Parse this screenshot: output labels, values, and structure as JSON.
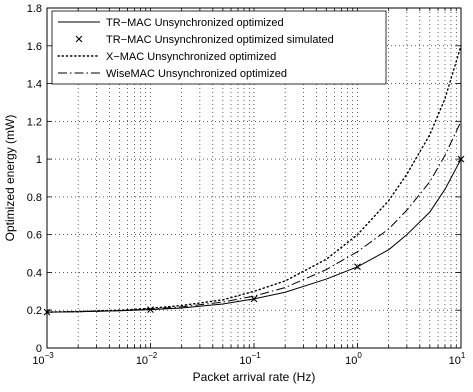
{
  "chart_data": {
    "type": "line",
    "title": "",
    "xlabel": "Packet arrival rate (Hz)",
    "ylabel": "Optimized energy (mW)",
    "x_scale": "log",
    "xlim": [
      0.001,
      10
    ],
    "ylim": [
      0,
      1.8
    ],
    "x_ticks": [
      0.001,
      0.01,
      0.1,
      1,
      10
    ],
    "x_tick_labels": [
      {
        "base": "10",
        "exp": "−3"
      },
      {
        "base": "10",
        "exp": "−2"
      },
      {
        "base": "10",
        "exp": "−1"
      },
      {
        "base": "10",
        "exp": "0"
      },
      {
        "base": "10",
        "exp": "1"
      }
    ],
    "y_ticks": [
      0,
      0.2,
      0.4,
      0.6,
      0.8,
      1,
      1.2,
      1.4,
      1.6,
      1.8
    ],
    "y_tick_labels": [
      "0",
      "0.2",
      "0.4",
      "0.6",
      "0.8",
      "1",
      "1.2",
      "1.4",
      "1.6",
      "1.8"
    ],
    "grid": true,
    "legend_position": "top-left",
    "series": [
      {
        "name": "TR−MAC Unsynchronized optimized",
        "style": "solid",
        "x": [
          0.001,
          0.002,
          0.005,
          0.01,
          0.02,
          0.05,
          0.1,
          0.2,
          0.5,
          1,
          2,
          3,
          5,
          7,
          10
        ],
        "y": [
          0.19,
          0.192,
          0.197,
          0.203,
          0.212,
          0.233,
          0.26,
          0.295,
          0.365,
          0.43,
          0.52,
          0.6,
          0.72,
          0.84,
          1.0
        ]
      },
      {
        "name": "TR−MAC Unsynchronized optimized simulated",
        "style": "markers-x",
        "x": [
          0.001,
          0.01,
          0.1,
          1,
          10
        ],
        "y": [
          0.19,
          0.203,
          0.26,
          0.43,
          1.0
        ]
      },
      {
        "name": "X−MAC Unsynchronized optimized",
        "style": "dotted",
        "x": [
          0.001,
          0.002,
          0.005,
          0.01,
          0.02,
          0.05,
          0.1,
          0.2,
          0.5,
          1,
          2,
          3,
          5,
          7,
          10
        ],
        "y": [
          0.19,
          0.193,
          0.2,
          0.21,
          0.225,
          0.255,
          0.3,
          0.355,
          0.47,
          0.6,
          0.78,
          0.92,
          1.13,
          1.32,
          1.6
        ]
      },
      {
        "name": "WiseMAC Unsynchronized optimized",
        "style": "dashdot",
        "x": [
          0.001,
          0.002,
          0.005,
          0.01,
          0.02,
          0.05,
          0.1,
          0.2,
          0.5,
          1,
          2,
          3,
          5,
          7,
          10
        ],
        "y": [
          0.19,
          0.192,
          0.198,
          0.206,
          0.218,
          0.243,
          0.275,
          0.32,
          0.415,
          0.51,
          0.63,
          0.73,
          0.88,
          1.02,
          1.2
        ]
      }
    ]
  }
}
